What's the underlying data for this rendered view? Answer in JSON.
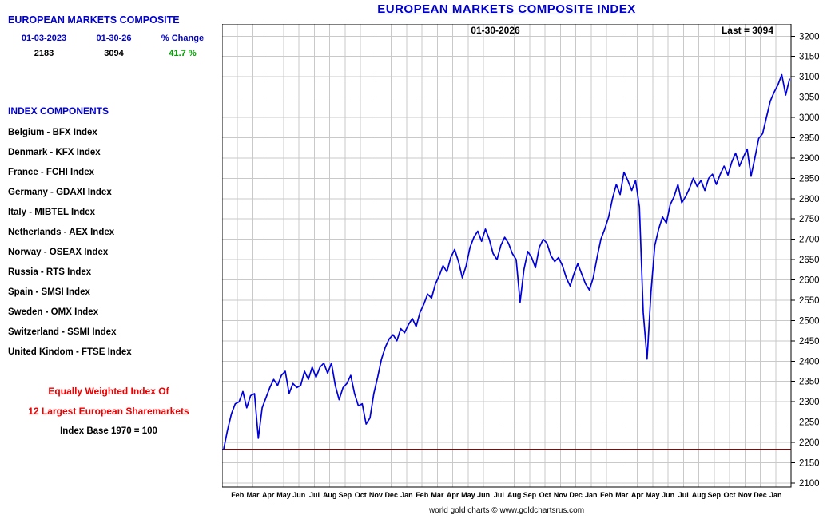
{
  "header": {
    "title": "EUROPEAN MARKETS COMPOSITE INDEX"
  },
  "sidebar": {
    "heading": "EUROPEAN MARKETS COMPOSITE",
    "summary": {
      "date_from": "01-03-2023",
      "date_to": "01-30-26",
      "change_label": "% Change",
      "value_from": "2183",
      "value_to": "3094",
      "change_value": "41.7 %"
    },
    "components_heading": "INDEX COMPONENTS",
    "components": [
      "Belgium - BFX Index",
      "Denmark - KFX Index",
      "France - FCHI Index",
      "Germany - GDAXI Index",
      "Italy - MIBTEL Index",
      "Netherlands - AEX Index",
      "Norway - OSEAX Index",
      "Russia - RTS Index",
      "Spain - SMSI Index",
      "Sweden - OMX Index",
      "Switzerland - SSMI Index",
      "United Kindom - FTSE Index"
    ],
    "footnote_red": [
      "Equally Weighted Index Of",
      "12 Largest European Sharemarkets"
    ],
    "footnote_black": "Index Base 1970 = 100"
  },
  "annotations": {
    "date_label": "01-30-2026",
    "last_label": "Last = 3094"
  },
  "footer": {
    "attribution": "world gold charts © www.goldchartsrus.com"
  },
  "colors": {
    "title_blue": "#0000cc",
    "line_blue": "#0000dd",
    "reference_red": "#990000",
    "change_green": "#00a000",
    "footnote_red": "#ee0000",
    "grid_gray": "#c9c9c9"
  },
  "chart_data": {
    "type": "line",
    "title": "EUROPEAN MARKETS COMPOSITE INDEX",
    "xlabel": "",
    "ylabel": "",
    "grid": true,
    "legend": "none",
    "ylim": [
      2090,
      3230
    ],
    "y_ticks": [
      2100,
      2150,
      2200,
      2250,
      2300,
      2350,
      2400,
      2450,
      2500,
      2550,
      2600,
      2650,
      2700,
      2750,
      2800,
      2850,
      2900,
      2950,
      3000,
      3050,
      3100,
      3150,
      3200
    ],
    "x_tick_labels": [
      "Feb",
      "Mar",
      "Apr",
      "May",
      "Jun",
      "Jul",
      "Aug",
      "Sep",
      "Oct",
      "Nov",
      "Dec",
      "Jan",
      "Feb",
      "Mar",
      "Apr",
      "May",
      "Jun",
      "Jul",
      "Aug",
      "Sep",
      "Oct",
      "Nov",
      "Dec",
      "Jan",
      "Feb",
      "Mar",
      "Apr",
      "May",
      "Jun",
      "Jul",
      "Aug",
      "Sep",
      "Oct",
      "Nov",
      "Dec",
      "Jan"
    ],
    "x_months_total": 37,
    "x_start_month": 0.1,
    "x_end_month": 36.9,
    "reference_line": 2183,
    "start_value": 2183,
    "last_value": 3094,
    "series": [
      {
        "name": "European Markets Composite Index",
        "color": "#0000dd",
        "values": [
          2183,
          2230,
          2270,
          2295,
          2300,
          2325,
          2285,
          2315,
          2320,
          2210,
          2285,
          2310,
          2335,
          2355,
          2340,
          2365,
          2375,
          2320,
          2345,
          2335,
          2340,
          2375,
          2355,
          2385,
          2360,
          2385,
          2395,
          2370,
          2395,
          2340,
          2305,
          2335,
          2345,
          2365,
          2320,
          2290,
          2295,
          2245,
          2260,
          2320,
          2360,
          2405,
          2435,
          2455,
          2465,
          2450,
          2480,
          2470,
          2490,
          2505,
          2485,
          2520,
          2540,
          2565,
          2555,
          2590,
          2610,
          2635,
          2620,
          2655,
          2675,
          2645,
          2605,
          2635,
          2680,
          2705,
          2720,
          2695,
          2725,
          2700,
          2665,
          2650,
          2685,
          2705,
          2690,
          2665,
          2650,
          2545,
          2625,
          2670,
          2655,
          2630,
          2680,
          2700,
          2690,
          2660,
          2645,
          2655,
          2635,
          2605,
          2585,
          2615,
          2640,
          2615,
          2590,
          2575,
          2605,
          2655,
          2700,
          2725,
          2755,
          2800,
          2835,
          2810,
          2865,
          2845,
          2820,
          2845,
          2780,
          2520,
          2405,
          2570,
          2685,
          2725,
          2755,
          2740,
          2785,
          2805,
          2835,
          2790,
          2805,
          2825,
          2850,
          2830,
          2845,
          2820,
          2850,
          2860,
          2835,
          2860,
          2880,
          2858,
          2890,
          2912,
          2880,
          2902,
          2922,
          2855,
          2900,
          2948,
          2960,
          3000,
          3040,
          3062,
          3080,
          3105,
          3055,
          3094
        ]
      }
    ]
  }
}
